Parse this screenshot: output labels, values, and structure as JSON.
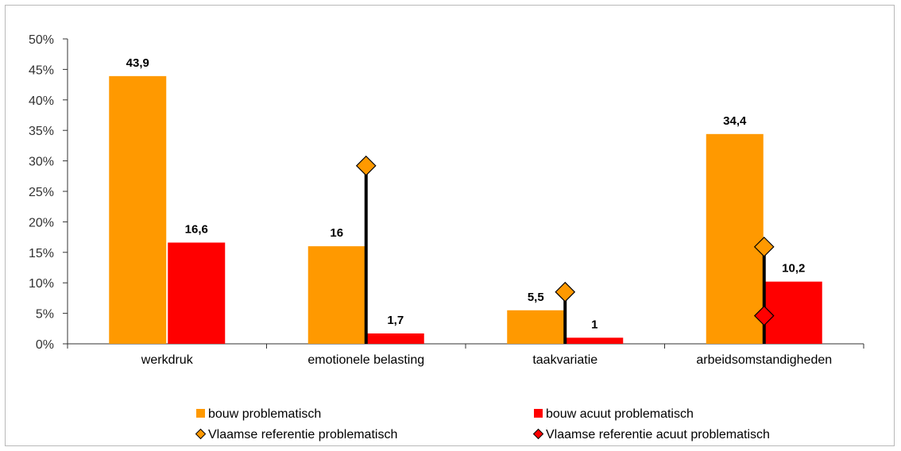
{
  "chart_data": {
    "type": "bar",
    "categories": [
      "werkdruk",
      "emotionele belasting",
      "taakvariatie",
      "arbeidsomstandigheden"
    ],
    "series": [
      {
        "name": "bouw problematisch",
        "kind": "bar",
        "color": "#FF9900",
        "values": [
          43.9,
          16,
          5.5,
          34.4
        ],
        "labels": [
          "43,9",
          "16",
          "5,5",
          "34,4"
        ]
      },
      {
        "name": "bouw acuut problematisch",
        "kind": "bar",
        "color": "#FF0000",
        "values": [
          16.6,
          1.7,
          1,
          10.2
        ],
        "labels": [
          "16,6",
          "1,7",
          "1",
          "10,2"
        ]
      },
      {
        "name": "Vlaamse referentie problematisch",
        "kind": "marker",
        "marker": "diamond",
        "color": "#FF9900",
        "values": [
          null,
          29.2,
          8.5,
          15.9
        ]
      },
      {
        "name": "Vlaamse referentie acuut problematisch",
        "kind": "marker",
        "marker": "diamond",
        "color": "#FF0000",
        "values": [
          null,
          null,
          null,
          4.6
        ]
      }
    ],
    "y_ticks": [
      "0%",
      "5%",
      "10%",
      "15%",
      "20%",
      "25%",
      "30%",
      "35%",
      "40%",
      "45%",
      "50%"
    ],
    "ylim": [
      0,
      50
    ],
    "grid": false,
    "legend_position": "bottom"
  }
}
